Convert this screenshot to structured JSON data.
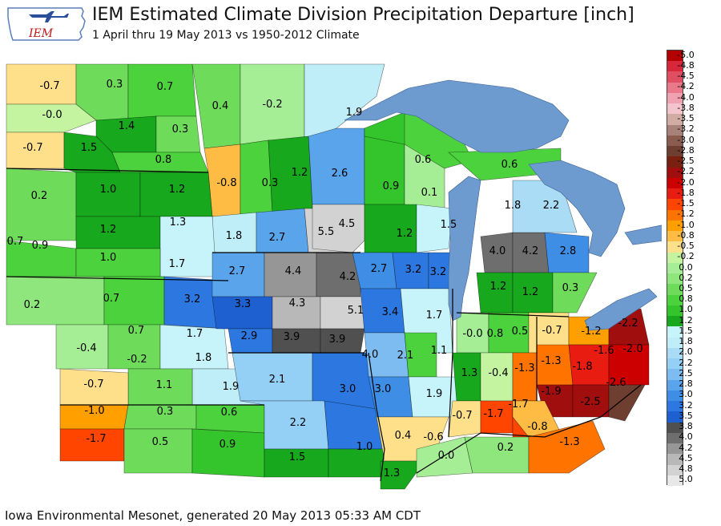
{
  "header": {
    "logo_text": "IEM",
    "title": "IEM Estimated Climate Division Precipitation Departure [inch]",
    "subtitle": "1 April thru 19 May 2013 vs 1950-2012 Climate"
  },
  "footer": {
    "credit": "Iowa Environmental Mesonet, generated 20 May 2013 05:33 AM CDT"
  },
  "legend": {
    "levels": [
      {
        "label": "-5.0",
        "color": "#b40000"
      },
      {
        "label": "-4.8",
        "color": "#d8263a"
      },
      {
        "label": "-4.5",
        "color": "#e04e62"
      },
      {
        "label": "-4.2",
        "color": "#e8788a"
      },
      {
        "label": "-4.0",
        "color": "#f0a2b0"
      },
      {
        "label": "-3.8",
        "color": "#f4c4cc"
      },
      {
        "label": "-3.5",
        "color": "#d0aca4"
      },
      {
        "label": "-3.2",
        "color": "#a8827a"
      },
      {
        "label": "-3.0",
        "color": "#8a5c50"
      },
      {
        "label": "-2.8",
        "color": "#6e3e30"
      },
      {
        "label": "-2.5",
        "color": "#7a2010"
      },
      {
        "label": "-2.2",
        "color": "#a00e0e"
      },
      {
        "label": "-2.0",
        "color": "#cc0000"
      },
      {
        "label": "-1.8",
        "color": "#e81c10"
      },
      {
        "label": "-1.5",
        "color": "#ff4500"
      },
      {
        "label": "-1.2",
        "color": "#ff7400"
      },
      {
        "label": "-1.0",
        "color": "#ff9f00"
      },
      {
        "label": "-0.8",
        "color": "#ffbc44"
      },
      {
        "label": "-0.5",
        "color": "#ffe08a"
      },
      {
        "label": "-0.2",
        "color": "#c4f4a0"
      },
      {
        "label": "0.0",
        "color": "#a6ee96"
      },
      {
        "label": "0.2",
        "color": "#8ee67c"
      },
      {
        "label": "0.5",
        "color": "#6edc5a"
      },
      {
        "label": "0.8",
        "color": "#4cd23c"
      },
      {
        "label": "1.0",
        "color": "#34c42c"
      },
      {
        "label": "1.2",
        "color": "#18a81e"
      },
      {
        "label": "1.5",
        "color": "#c6f4fa"
      },
      {
        "label": "1.8",
        "color": "#c0eef8"
      },
      {
        "label": "2.0",
        "color": "#aadcf6"
      },
      {
        "label": "2.2",
        "color": "#94d0f6"
      },
      {
        "label": "2.5",
        "color": "#7cbcf0"
      },
      {
        "label": "2.8",
        "color": "#5aa4ec"
      },
      {
        "label": "3.0",
        "color": "#3e8ee6"
      },
      {
        "label": "3.2",
        "color": "#2c78e0"
      },
      {
        "label": "3.5",
        "color": "#1e60d0"
      },
      {
        "label": "3.8",
        "color": "#505050"
      },
      {
        "label": "4.0",
        "color": "#6e6e6e"
      },
      {
        "label": "4.2",
        "color": "#969696"
      },
      {
        "label": "4.5",
        "color": "#b8b8b8"
      },
      {
        "label": "4.8",
        "color": "#d2d2d2"
      },
      {
        "label": "5.0",
        "color": "#e8e8e8"
      }
    ]
  },
  "map": {
    "colors": {
      "lake": "#6d9bd0",
      "background": "#ffffff",
      "border": "#000000"
    },
    "divisions": [
      {
        "value": -0.7,
        "text": "-0.7"
      },
      {
        "value": 0.3,
        "text": "0.3"
      },
      {
        "value": 0.7,
        "text": "0.7"
      },
      {
        "value": 0.4,
        "text": "0.4"
      },
      {
        "value": -0.2,
        "text": "-0.2"
      },
      {
        "value": 1.9,
        "text": "1.9"
      },
      {
        "value": 0.0,
        "text": "-0.0"
      },
      {
        "value": 1.4,
        "text": "1.4"
      },
      {
        "value": 0.3,
        "text": "0.3"
      },
      {
        "value": -0.7,
        "text": "-0.7"
      },
      {
        "value": 1.5,
        "text": "1.5"
      },
      {
        "value": 0.8,
        "text": "0.8"
      },
      {
        "value": 1.2,
        "text": "1.2"
      },
      {
        "value": 0.6,
        "text": "0.6"
      },
      {
        "value": 0.6,
        "text": "0.6"
      },
      {
        "value": -0.8,
        "text": "-0.8"
      },
      {
        "value": 0.3,
        "text": "0.3"
      },
      {
        "value": 2.6,
        "text": "2.6"
      },
      {
        "value": 0.9,
        "text": "0.9"
      },
      {
        "value": 0.1,
        "text": "0.1"
      },
      {
        "value": 0.2,
        "text": "0.2"
      },
      {
        "value": 1.0,
        "text": "1.0"
      },
      {
        "value": 1.2,
        "text": "1.2"
      },
      {
        "value": 1.8,
        "text": "1.8"
      },
      {
        "value": 2.2,
        "text": "2.2"
      },
      {
        "value": 1.3,
        "text": "1.3"
      },
      {
        "value": 5.5,
        "text": "5.5"
      },
      {
        "value": 4.5,
        "text": "4.5"
      },
      {
        "value": 1.5,
        "text": "1.5"
      },
      {
        "value": 1.2,
        "text": "1.2"
      },
      {
        "value": 1.8,
        "text": "1.8"
      },
      {
        "value": 2.7,
        "text": "2.7"
      },
      {
        "value": 0.7,
        "text": "0.7"
      },
      {
        "value": 0.9,
        "text": "0.9"
      },
      {
        "value": 1.2,
        "text": "1.2"
      },
      {
        "value": 4.0,
        "text": "4.0"
      },
      {
        "value": 4.2,
        "text": "4.2"
      },
      {
        "value": 2.8,
        "text": "2.8"
      },
      {
        "value": 1.0,
        "text": "1.0"
      },
      {
        "value": 1.7,
        "text": "1.7"
      },
      {
        "value": 2.7,
        "text": "2.7"
      },
      {
        "value": 4.4,
        "text": "4.4"
      },
      {
        "value": 4.2,
        "text": "4.2"
      },
      {
        "value": 2.7,
        "text": "2.7"
      },
      {
        "value": 3.2,
        "text": "3.2"
      },
      {
        "value": 3.2,
        "text": "3.2"
      },
      {
        "value": 1.2,
        "text": "1.2"
      },
      {
        "value": 1.2,
        "text": "1.2"
      },
      {
        "value": 0.3,
        "text": "0.3"
      },
      {
        "value": 0.2,
        "text": "0.2"
      },
      {
        "value": 0.7,
        "text": "0.7"
      },
      {
        "value": 3.2,
        "text": "3.2"
      },
      {
        "value": 3.3,
        "text": "3.3"
      },
      {
        "value": 4.3,
        "text": "4.3"
      },
      {
        "value": 5.1,
        "text": "5.1"
      },
      {
        "value": 3.4,
        "text": "3.4"
      },
      {
        "value": 1.7,
        "text": "1.7"
      },
      {
        "value": 0.7,
        "text": "0.7"
      },
      {
        "value": 1.7,
        "text": "1.7"
      },
      {
        "value": 2.9,
        "text": "2.9"
      },
      {
        "value": 3.9,
        "text": "3.9"
      },
      {
        "value": 3.9,
        "text": "3.9"
      },
      {
        "value": 0.0,
        "text": "-0.0"
      },
      {
        "value": 0.8,
        "text": "0.8"
      },
      {
        "value": 0.5,
        "text": "0.5"
      },
      {
        "value": -0.7,
        "text": "-0.7"
      },
      {
        "value": -1.2,
        "text": "-1.2"
      },
      {
        "value": -2.2,
        "text": "-2.2"
      },
      {
        "value": -0.4,
        "text": "-0.4"
      },
      {
        "value": -0.2,
        "text": "-0.2"
      },
      {
        "value": 1.8,
        "text": "1.8"
      },
      {
        "value": 4.0,
        "text": "4.0"
      },
      {
        "value": 2.1,
        "text": "2.1"
      },
      {
        "value": 1.1,
        "text": "1.1"
      },
      {
        "value": -1.6,
        "text": "-1.6"
      },
      {
        "value": -2.0,
        "text": "-2.0"
      },
      {
        "value": -0.7,
        "text": "-0.7"
      },
      {
        "value": 1.1,
        "text": "1.1"
      },
      {
        "value": 1.9,
        "text": "1.9"
      },
      {
        "value": 2.1,
        "text": "2.1"
      },
      {
        "value": 1.3,
        "text": "1.3"
      },
      {
        "value": -0.4,
        "text": "-0.4"
      },
      {
        "value": -1.3,
        "text": "-1.3"
      },
      {
        "value": -1.3,
        "text": "-1.3"
      },
      {
        "value": -1.8,
        "text": "-1.8"
      },
      {
        "value": -2.6,
        "text": "-2.6"
      },
      {
        "value": -1.0,
        "text": "-1.0"
      },
      {
        "value": 0.3,
        "text": "0.3"
      },
      {
        "value": 0.6,
        "text": "0.6"
      },
      {
        "value": 3.0,
        "text": "3.0"
      },
      {
        "value": 3.0,
        "text": "3.0"
      },
      {
        "value": 1.9,
        "text": "1.9"
      },
      {
        "value": -1.9,
        "text": "-1.9"
      },
      {
        "value": -2.5,
        "text": "-2.5"
      },
      {
        "value": -1.7,
        "text": "-1.7"
      },
      {
        "value": 2.2,
        "text": "2.2"
      },
      {
        "value": -0.7,
        "text": "-0.7"
      },
      {
        "value": -1.7,
        "text": "-1.7"
      },
      {
        "value": -0.8,
        "text": "-0.8"
      },
      {
        "value": -1.7,
        "text": "-1.7"
      },
      {
        "value": 0.5,
        "text": "0.5"
      },
      {
        "value": 0.9,
        "text": "0.9"
      },
      {
        "value": 1.0,
        "text": "1.0"
      },
      {
        "value": 0.4,
        "text": "0.4"
      },
      {
        "value": -0.6,
        "text": "-0.6"
      },
      {
        "value": -1.3,
        "text": "-1.3"
      },
      {
        "value": 0.2,
        "text": "0.2"
      },
      {
        "value": 1.5,
        "text": "1.5"
      },
      {
        "value": 0.0,
        "text": "0.0"
      },
      {
        "value": 1.3,
        "text": "1.3"
      }
    ]
  }
}
